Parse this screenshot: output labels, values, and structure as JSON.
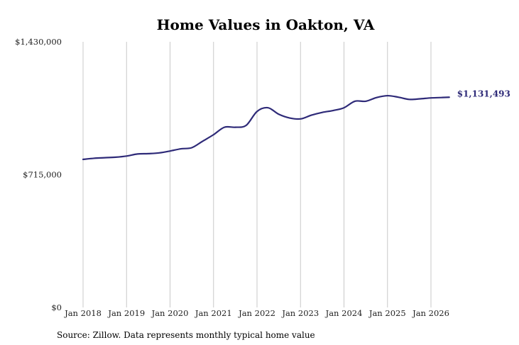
{
  "colors": {
    "line": "#2e2a78",
    "end_label": "#2e2a78",
    "grid": "#c8c8c8",
    "text": "#222222"
  },
  "chart_data": {
    "type": "line",
    "title": "Home Values in Oakton, VA",
    "xlabel": "",
    "ylabel": "",
    "ylim": [
      0,
      1430000
    ],
    "y_ticks": [
      {
        "value": 0,
        "label": "$0"
      },
      {
        "value": 715000,
        "label": "$715,000"
      },
      {
        "value": 1430000,
        "label": "$1,430,000"
      }
    ],
    "x_ticks": [
      {
        "value": 2018.0,
        "label": "Jan 2018"
      },
      {
        "value": 2019.0,
        "label": "Jan 2019"
      },
      {
        "value": 2020.0,
        "label": "Jan 2020"
      },
      {
        "value": 2021.0,
        "label": "Jan 2021"
      },
      {
        "value": 2022.0,
        "label": "Jan 2022"
      },
      {
        "value": 2023.0,
        "label": "Jan 2023"
      },
      {
        "value": 2024.0,
        "label": "Jan 2024"
      },
      {
        "value": 2025.0,
        "label": "Jan 2025"
      },
      {
        "value": 2026.0,
        "label": "Jan 2026"
      }
    ],
    "xlim": [
      2018.0,
      2026.42
    ],
    "grid": "vertical",
    "series": [
      {
        "x": [
          2018.0,
          2018.25,
          2018.5,
          2018.75,
          2019.0,
          2019.25,
          2019.5,
          2019.75,
          2020.0,
          2020.25,
          2020.5,
          2020.75,
          2021.0,
          2021.25,
          2021.5,
          2021.75,
          2022.0,
          2022.25,
          2022.5,
          2022.75,
          2023.0,
          2023.25,
          2023.5,
          2023.75,
          2024.0,
          2024.25,
          2024.5,
          2024.75,
          2025.0,
          2025.25,
          2025.5,
          2025.75,
          2026.0,
          2026.25,
          2026.42
        ],
        "values": [
          797000,
          803000,
          806000,
          809000,
          815000,
          826000,
          828000,
          832000,
          842000,
          854000,
          860000,
          895000,
          930000,
          970000,
          970000,
          980000,
          1055000,
          1075000,
          1040000,
          1020000,
          1015000,
          1035000,
          1050000,
          1060000,
          1075000,
          1110000,
          1110000,
          1130000,
          1140000,
          1132000,
          1120000,
          1123000,
          1128000,
          1130000,
          1131493
        ]
      }
    ],
    "end_label": "$1,131,493",
    "source": "Source: Zillow. Data represents monthly typical home value"
  }
}
